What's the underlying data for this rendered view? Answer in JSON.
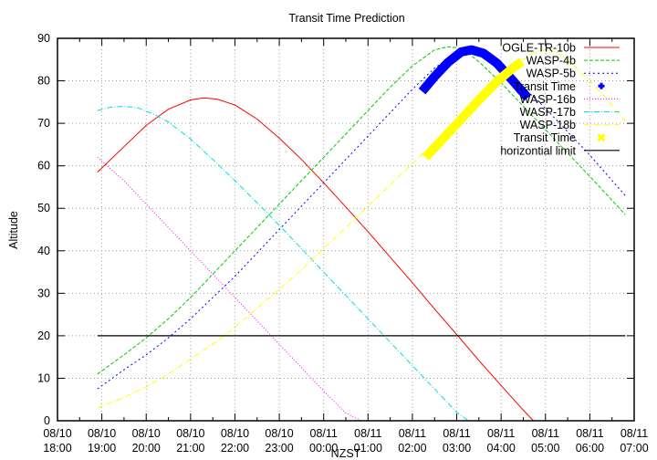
{
  "chart_data": {
    "type": "line",
    "title": "Transit Time Prediction",
    "xlabel": "NZST",
    "ylabel": "Altitude",
    "ylim": [
      0,
      90
    ],
    "yticks": [
      0,
      10,
      20,
      30,
      40,
      50,
      60,
      70,
      80,
      90
    ],
    "xlim_hours_from_1800": [
      0,
      13
    ],
    "xticks": [
      {
        "date": "08/10",
        "time": "18:00"
      },
      {
        "date": "08/10",
        "time": "19:00"
      },
      {
        "date": "08/10",
        "time": "20:00"
      },
      {
        "date": "08/10",
        "time": "21:00"
      },
      {
        "date": "08/10",
        "time": "22:00"
      },
      {
        "date": "08/10",
        "time": "23:00"
      },
      {
        "date": "08/11",
        "time": "00:00"
      },
      {
        "date": "08/11",
        "time": "01:00"
      },
      {
        "date": "08/11",
        "time": "02:00"
      },
      {
        "date": "08/11",
        "time": "03:00"
      },
      {
        "date": "08/11",
        "time": "04:00"
      },
      {
        "date": "08/11",
        "time": "05:00"
      },
      {
        "date": "08/11",
        "time": "06:00"
      },
      {
        "date": "08/11",
        "time": "07:00"
      }
    ],
    "grid": true,
    "legend_position": "top-right inside",
    "x_unit": "hours since 08/10 18:00",
    "series": [
      {
        "name": "OGLE-TR-10b",
        "color": "#ff0000",
        "dash": "",
        "x": [
          0.9,
          1.5,
          2.0,
          2.5,
          3.0,
          3.3,
          3.6,
          4.0,
          4.5,
          5.0,
          5.5,
          6.0,
          6.5,
          7.0,
          7.5,
          8.0,
          8.5,
          9.0,
          9.5,
          10.0,
          10.5,
          11.0,
          11.5
        ],
        "y": [
          58.5,
          64.5,
          69.5,
          73.3,
          75.5,
          76.0,
          75.7,
          74.3,
          71.0,
          66.5,
          61.5,
          56.0,
          50.3,
          44.5,
          38.5,
          32.5,
          26.3,
          20.3,
          14.2,
          8.3,
          2.5,
          -3,
          -9
        ]
      },
      {
        "name": "WASP-4b",
        "color": "#00cc00",
        "dash": "4,2",
        "x": [
          0.9,
          1.5,
          2.0,
          2.5,
          3.0,
          3.5,
          4.0,
          4.5,
          5.0,
          5.5,
          6.0,
          6.5,
          7.0,
          7.5,
          8.0,
          8.5,
          8.8,
          9.0,
          9.2,
          9.5,
          10.0,
          10.5,
          11.0,
          11.5,
          12.0,
          12.8
        ],
        "y": [
          11,
          15.5,
          19.5,
          24,
          29,
          34.5,
          40,
          45.5,
          51,
          56.5,
          62,
          67.5,
          73,
          78.5,
          83.5,
          87.3,
          88.0,
          87.8,
          87.0,
          84.5,
          79.5,
          74,
          68.5,
          63,
          57.5,
          48.5
        ]
      },
      {
        "name": "WASP-5b",
        "color": "#0000ff",
        "dash": "2,3",
        "x": [
          0.9,
          1.5,
          2.0,
          2.5,
          3.0,
          3.5,
          4.0,
          4.5,
          5.0,
          5.5,
          6.0,
          6.5,
          7.0,
          7.5,
          8.0,
          8.5,
          9.0,
          9.3,
          9.6,
          10.0,
          10.5,
          11.0,
          11.5,
          12.0,
          12.8
        ],
        "y": [
          7.5,
          12,
          15.5,
          19.5,
          24,
          29,
          34,
          39.5,
          45,
          50.5,
          56,
          61.5,
          67,
          72.5,
          78,
          83,
          86.7,
          87.3,
          86.8,
          83.5,
          78.5,
          73.5,
          68,
          62.5,
          53
        ]
      },
      {
        "name": "Transit Time",
        "color": "#0000ff",
        "marker": "plus",
        "x": [
          8.22,
          8.5,
          8.8,
          9.1,
          9.33,
          9.6,
          9.9,
          10.2,
          10.6
        ],
        "y": [
          77.5,
          81,
          84.3,
          86.8,
          87.3,
          86.5,
          84.2,
          80.8,
          76
        ]
      },
      {
        "name": "WASP-16b",
        "color": "#ff00ff",
        "dash": "1,2",
        "x": [
          0.9,
          1.5,
          2.0,
          2.5,
          3.0,
          3.5,
          4.0,
          4.5,
          5.0,
          5.5,
          6.0,
          6.5,
          7.05
        ],
        "y": [
          62,
          56.5,
          51,
          45.5,
          40,
          34.5,
          29,
          23.5,
          18,
          12.5,
          7,
          1.8,
          -1
        ]
      },
      {
        "name": "WASP-17b",
        "color": "#00dddd",
        "dash": "6,2,1,2",
        "x": [
          0.9,
          1.2,
          1.5,
          1.8,
          2.2,
          2.5,
          3.0,
          3.5,
          4.0,
          4.5,
          5.0,
          5.5,
          6.0,
          6.5,
          7.0,
          7.5,
          8.0,
          8.5,
          9.0,
          9.4
        ],
        "y": [
          73,
          73.8,
          74,
          73.7,
          72,
          70.3,
          66.3,
          61.5,
          56.5,
          51.3,
          46,
          40.5,
          35,
          29.5,
          24,
          18.5,
          13,
          7.5,
          2,
          -1
        ]
      },
      {
        "name": "WASP-18b",
        "color": "#ffff00",
        "dash": "6,2,1,2",
        "x": [
          0.9,
          1.5,
          2.0,
          2.5,
          3.0,
          3.5,
          4.0,
          4.5,
          5.0,
          5.5,
          6.0,
          6.5,
          7.0,
          7.5,
          8.0,
          8.5,
          9.0,
          9.5,
          10.0,
          10.5,
          10.8,
          11.05,
          11.3,
          11.6,
          12.0,
          12.4,
          12.8
        ],
        "y": [
          3,
          5.5,
          8,
          11,
          14.5,
          18,
          22,
          26.5,
          31,
          35.5,
          40.5,
          45.5,
          50.5,
          55.5,
          60.5,
          65.5,
          70.5,
          75.5,
          80.5,
          85,
          87,
          87.3,
          86.5,
          84,
          80,
          75.5,
          70.5
        ]
      },
      {
        "name": "Transit Time",
        "color": "#ffff00",
        "marker": "cross",
        "x": [
          8.3,
          8.7,
          9.1,
          9.5,
          9.9,
          10.3,
          10.47
        ],
        "y": [
          62,
          66.5,
          71,
          75.5,
          79.8,
          83.3,
          84.5
        ]
      },
      {
        "name": "horizontial limit",
        "color": "#000000",
        "dash": "",
        "x": [
          0.9,
          12.8
        ],
        "y": [
          20,
          20
        ]
      }
    ]
  }
}
